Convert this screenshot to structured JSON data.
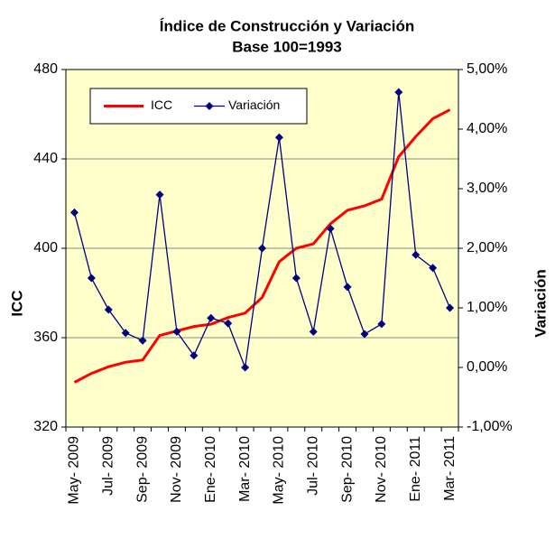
{
  "chart_data": {
    "type": "line",
    "title": "Índice de Construcción  y Variación",
    "subtitle": "Base 100=1993",
    "y_label": "ICC",
    "y2_label": "Variación",
    "categories": [
      "May- 2009",
      null,
      "Jul- 2009",
      null,
      "Sep- 2009",
      null,
      "Nov- 2009",
      null,
      "Ene- 2010",
      null,
      "Mar- 2010",
      null,
      "May- 2010",
      null,
      "Jul- 2010",
      null,
      "Sep- 2010",
      null,
      "Nov- 2010",
      null,
      "Ene- 2011",
      null,
      "Mar- 2011"
    ],
    "series": [
      {
        "name": "ICC",
        "color": "#ff0000",
        "axis": "y",
        "values": [
          340,
          344,
          347,
          349,
          350,
          361,
          363,
          365,
          366,
          369,
          371,
          378,
          394,
          400,
          402,
          411,
          417,
          419,
          422,
          441,
          450,
          458,
          462
        ]
      },
      {
        "name": "Variación",
        "color": "#000080",
        "axis": "y2",
        "values": [
          2.6,
          1.5,
          0.97,
          0.58,
          0.45,
          2.9,
          0.6,
          0.2,
          0.83,
          0.74,
          0.0,
          2.0,
          3.86,
          1.5,
          0.6,
          2.33,
          1.35,
          0.56,
          0.73,
          4.62,
          1.89,
          1.67,
          1.0
        ]
      }
    ],
    "ylim": [
      320,
      480
    ],
    "yticks": [
      320,
      360,
      400,
      440,
      480
    ],
    "y2lim": [
      -1,
      5
    ],
    "y2ticks": [
      {
        "value": -1,
        "label": "-1,00%"
      },
      {
        "value": 0,
        "label": "0,00%"
      },
      {
        "value": 1,
        "label": "1,00%"
      },
      {
        "value": 2,
        "label": "2,00%"
      },
      {
        "value": 3,
        "label": "3,00%"
      },
      {
        "value": 4,
        "label": "4,00%"
      },
      {
        "value": 5,
        "label": "5,00%"
      }
    ],
    "grid": true,
    "legend": "top-left",
    "background": "#ffffcc"
  }
}
